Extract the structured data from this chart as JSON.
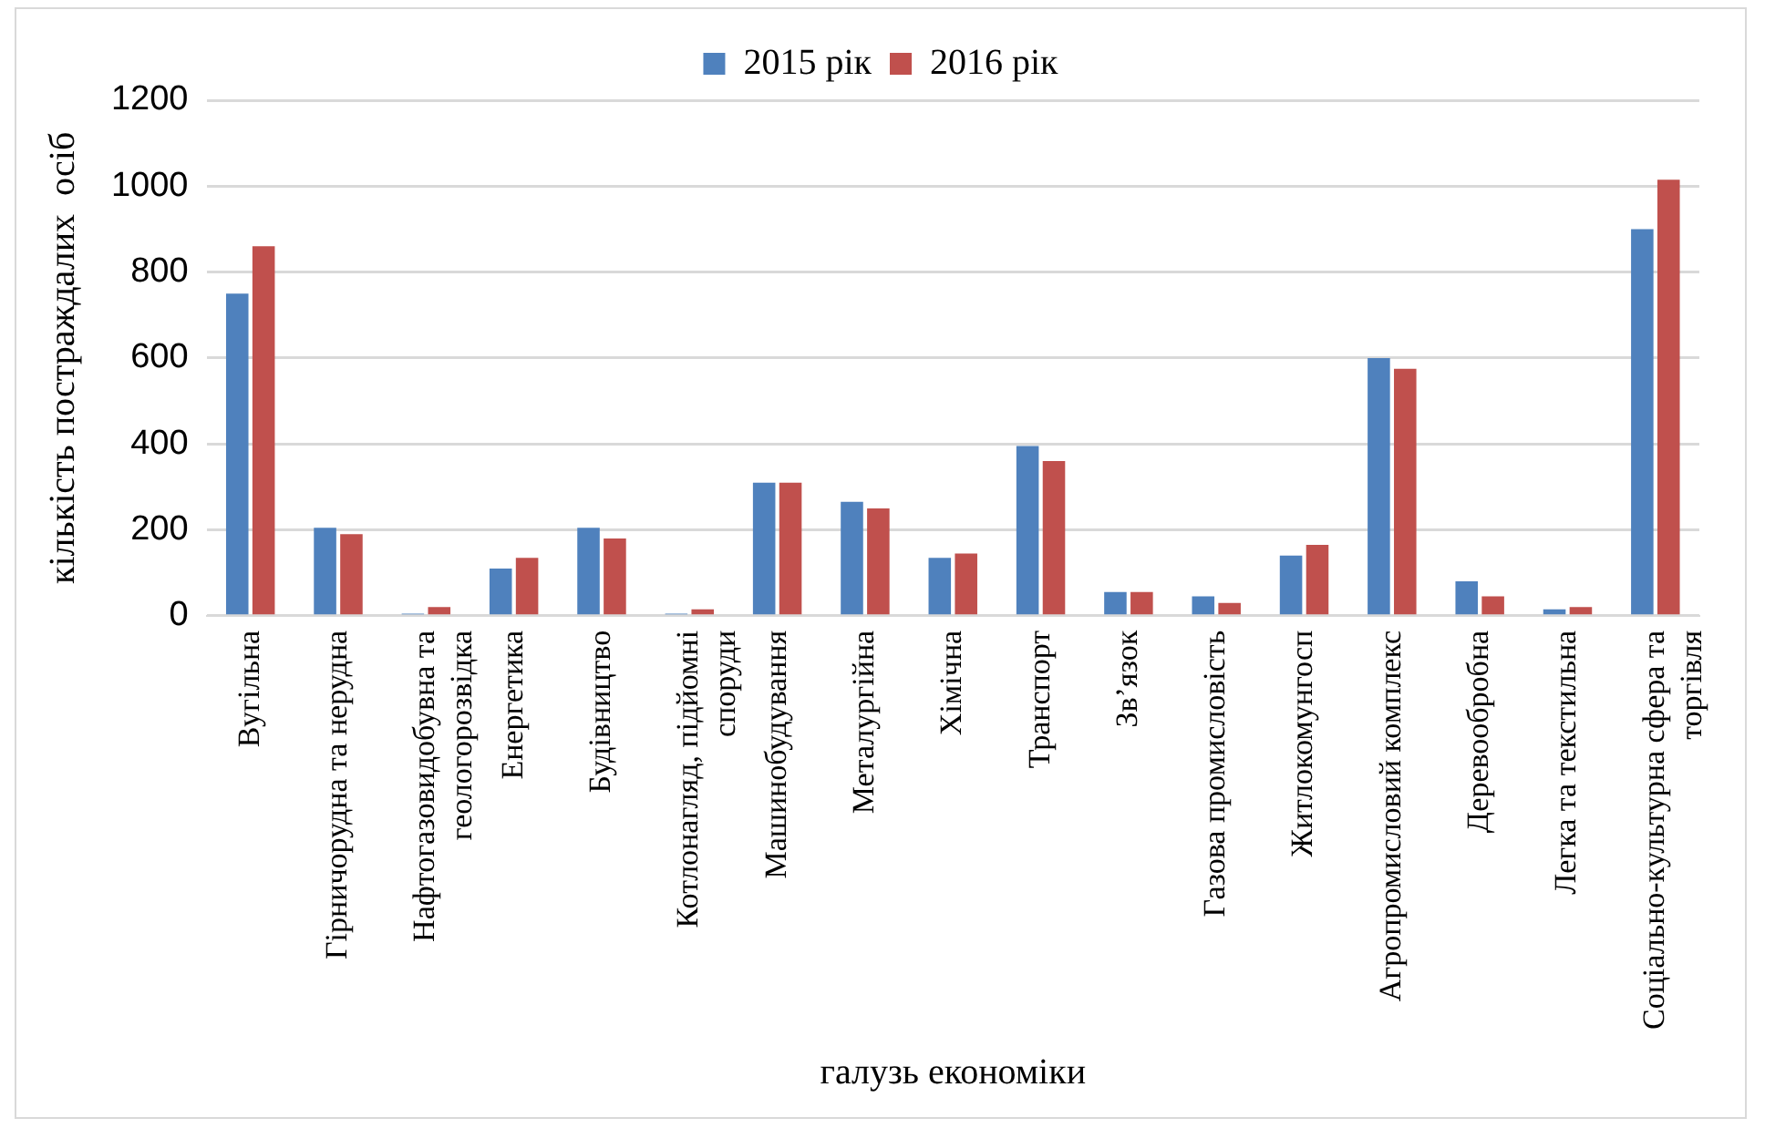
{
  "chart_data": {
    "type": "bar",
    "categories": [
      "Вугільна",
      "Гірничорудна та нерудна",
      "Нафтогазовидобувна та геологорозвідка",
      "Енергетика",
      "Будівництво",
      "Котлонагляд, підйомні споруди",
      "Машинобудування",
      "Металургійна",
      "Хімічна",
      "Транспорт",
      "Зв’язок",
      "Газова промисловість",
      "Житлокомунгосп",
      "Агропромисловий комплекс",
      "Деревообробна",
      "Легка та текстильна",
      "Соціально-культурна сфера та торгівля"
    ],
    "series": [
      {
        "name": "2015 рік",
        "color": "#4f81bd",
        "values": [
          750,
          205,
          5,
          110,
          205,
          5,
          310,
          265,
          135,
          395,
          55,
          45,
          140,
          600,
          80,
          15,
          900
        ]
      },
      {
        "name": "2016 рік",
        "color": "#c0504d",
        "values": [
          860,
          190,
          20,
          135,
          180,
          15,
          310,
          250,
          145,
          360,
          55,
          30,
          165,
          575,
          45,
          20,
          1015
        ]
      }
    ],
    "xlabel": "галузь економіки",
    "ylabel": "кількість постраждалих  осіб",
    "ylim": [
      0,
      1200
    ],
    "yticks": [
      0,
      200,
      400,
      600,
      800,
      1000,
      1200
    ],
    "grid": "y",
    "legend": "top"
  }
}
